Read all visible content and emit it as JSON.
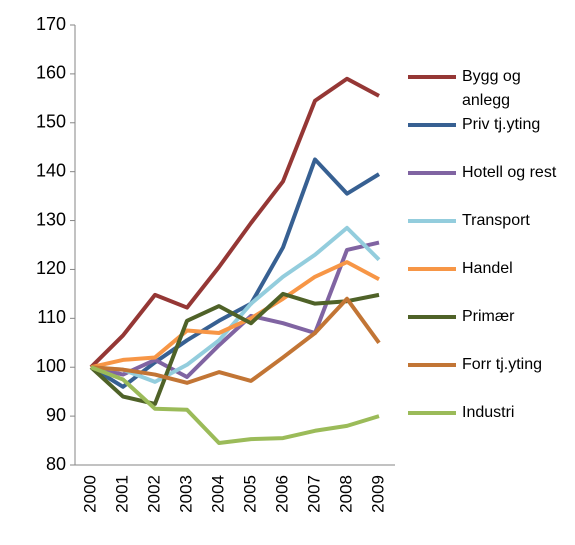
{
  "chart_data": {
    "type": "line",
    "x": [
      "2000",
      "2001",
      "2002",
      "2003",
      "2004",
      "2005",
      "2006",
      "2007",
      "2008",
      "2009"
    ],
    "ylim": [
      80,
      170
    ],
    "yticks": [
      80,
      90,
      100,
      110,
      120,
      130,
      140,
      150,
      160,
      170
    ],
    "legend": "right",
    "series": [
      {
        "name": "Bygg og anlegg",
        "color": "#953735",
        "values": [
          100,
          106.5,
          114.8,
          112.2,
          120.5,
          129.5,
          138,
          154.5,
          159,
          155.5
        ]
      },
      {
        "name": "Priv tj.yting",
        "color": "#376092",
        "values": [
          100,
          96,
          101,
          105.5,
          109.5,
          113,
          124.5,
          142.5,
          135.5,
          139.5
        ]
      },
      {
        "name": "Hotell og rest",
        "color": "#8064a2",
        "values": [
          100,
          98.5,
          101.5,
          98,
          104.5,
          110.5,
          109,
          107,
          124,
          125.5
        ]
      },
      {
        "name": "Transport",
        "color": "#93cddd",
        "values": [
          100,
          99.5,
          97,
          100.5,
          105.5,
          113,
          118.5,
          123,
          128.5,
          122
        ]
      },
      {
        "name": "Handel",
        "color": "#f79646",
        "values": [
          100,
          101.5,
          102,
          107.5,
          107,
          110,
          114,
          118.5,
          121.5,
          118
        ]
      },
      {
        "name": "Primær",
        "color": "#4f6228",
        "values": [
          100,
          94,
          92.5,
          109.5,
          112.5,
          109,
          115,
          113,
          113.5,
          114.8
        ]
      },
      {
        "name": "Forr tj.yting",
        "color": "#c27535",
        "values": [
          100,
          99.5,
          98.5,
          96.8,
          99,
          97.2,
          102,
          107,
          114,
          105
        ]
      },
      {
        "name": "Industri",
        "color": "#9bbb59",
        "values": [
          100,
          97.5,
          91.5,
          91.3,
          84.5,
          85.3,
          85.5,
          87,
          88,
          90
        ]
      }
    ]
  }
}
